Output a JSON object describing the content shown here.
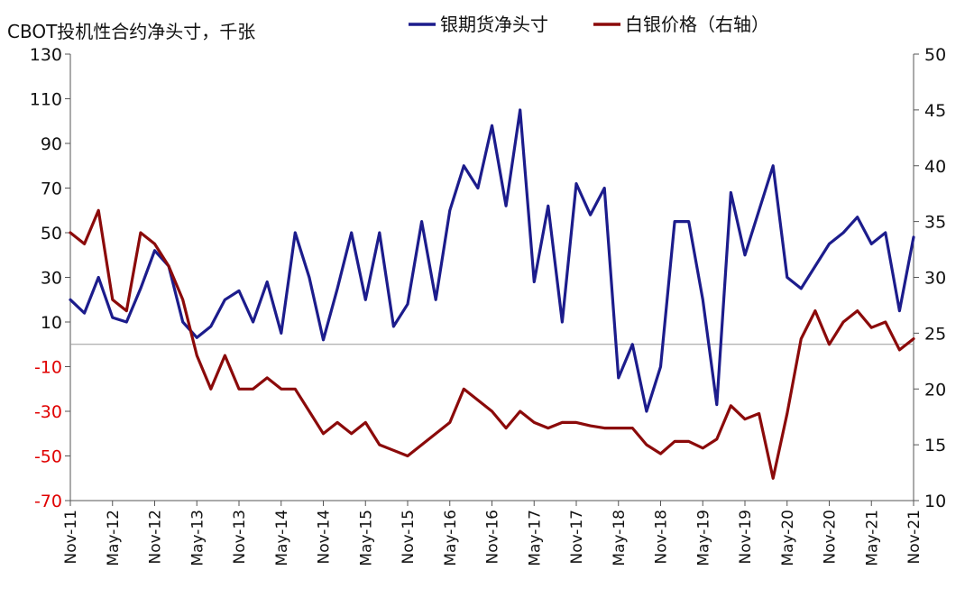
{
  "chart_data": {
    "type": "line",
    "title": "",
    "ylabel_left": "CBOT投机性合约净头寸，千张",
    "ylabel_right": "",
    "legend_position": "top",
    "grid": false,
    "left_axis": {
      "range": [
        -70,
        130
      ],
      "ticks": [
        "130",
        "110",
        "90",
        "70",
        "50",
        "30",
        "10",
        "-10",
        "-30",
        "-50",
        "-70"
      ],
      "negative_color": "#e00000"
    },
    "right_axis": {
      "range": [
        10,
        50
      ],
      "ticks": [
        "50",
        "45",
        "40",
        "35",
        "30",
        "25",
        "20",
        "15",
        "10"
      ]
    },
    "x_ticks": [
      "Nov-11",
      "May-12",
      "Nov-12",
      "May-13",
      "Nov-13",
      "May-14",
      "Nov-14",
      "May-15",
      "Nov-15",
      "May-16",
      "Nov-16",
      "May-17",
      "Nov-17",
      "May-18",
      "Nov-18",
      "May-19",
      "Nov-19",
      "May-20",
      "Nov-20",
      "May-21",
      "Nov-21"
    ],
    "series": [
      {
        "name": "银期货净头寸",
        "axis": "left",
        "color": "#1c1c8c",
        "x": [
          "Nov-11",
          "Jan-12",
          "Mar-12",
          "May-12",
          "Jul-12",
          "Sep-12",
          "Nov-12",
          "Jan-13",
          "Mar-13",
          "May-13",
          "Jul-13",
          "Sep-13",
          "Nov-13",
          "Jan-14",
          "Mar-14",
          "May-14",
          "Jul-14",
          "Sep-14",
          "Nov-14",
          "Jan-15",
          "Mar-15",
          "May-15",
          "Jul-15",
          "Sep-15",
          "Nov-15",
          "Jan-16",
          "Mar-16",
          "May-16",
          "Jul-16",
          "Sep-16",
          "Nov-16",
          "Jan-17",
          "Mar-17",
          "May-17",
          "Jul-17",
          "Sep-17",
          "Nov-17",
          "Jan-18",
          "Mar-18",
          "May-18",
          "Jul-18",
          "Sep-18",
          "Nov-18",
          "Jan-19",
          "Mar-19",
          "May-19",
          "Jul-19",
          "Sep-19",
          "Nov-19",
          "Jan-20",
          "Mar-20",
          "May-20",
          "Jul-20",
          "Sep-20",
          "Nov-20",
          "Jan-21",
          "Mar-21",
          "May-21",
          "Jul-21",
          "Sep-21",
          "Nov-21"
        ],
        "values": [
          20,
          14,
          30,
          12,
          10,
          25,
          42,
          35,
          10,
          3,
          8,
          20,
          24,
          10,
          28,
          5,
          50,
          30,
          2,
          25,
          50,
          20,
          50,
          8,
          18,
          55,
          20,
          60,
          80,
          70,
          98,
          62,
          105,
          28,
          62,
          10,
          72,
          58,
          70,
          -15,
          0,
          -30,
          -10,
          55,
          55,
          20,
          -27,
          68,
          40,
          60,
          80,
          30,
          25,
          35,
          45,
          50,
          57,
          45,
          50,
          15,
          48
        ]
      },
      {
        "name": "白银价格（右轴）",
        "axis": "right",
        "color": "#8b0a0a",
        "x": [
          "Nov-11",
          "Jan-12",
          "Mar-12",
          "May-12",
          "Jul-12",
          "Sep-12",
          "Nov-12",
          "Jan-13",
          "Mar-13",
          "May-13",
          "Jul-13",
          "Sep-13",
          "Nov-13",
          "Jan-14",
          "Mar-14",
          "May-14",
          "Jul-14",
          "Sep-14",
          "Nov-14",
          "Jan-15",
          "Mar-15",
          "May-15",
          "Jul-15",
          "Sep-15",
          "Nov-15",
          "Jan-16",
          "Mar-16",
          "May-16",
          "Jul-16",
          "Sep-16",
          "Nov-16",
          "Jan-17",
          "Mar-17",
          "May-17",
          "Jul-17",
          "Sep-17",
          "Nov-17",
          "Jan-18",
          "Mar-18",
          "May-18",
          "Jul-18",
          "Sep-18",
          "Nov-18",
          "Jan-19",
          "Mar-19",
          "May-19",
          "Jul-19",
          "Sep-19",
          "Nov-19",
          "Jan-20",
          "Mar-20",
          "May-20",
          "Jul-20",
          "Sep-20",
          "Nov-20",
          "Jan-21",
          "Mar-21",
          "May-21",
          "Jul-21",
          "Sep-21",
          "Nov-21"
        ],
        "values": [
          34,
          33,
          36,
          28,
          27,
          34,
          33,
          31,
          28,
          23,
          20,
          23,
          20,
          20,
          21,
          20,
          20,
          18,
          16,
          17,
          16,
          17,
          15,
          14.5,
          14,
          15,
          16,
          17,
          20,
          19,
          18,
          16.5,
          18,
          17,
          16.5,
          17,
          17,
          16.7,
          16.5,
          16.5,
          16.5,
          15,
          14.2,
          15.3,
          15.3,
          14.7,
          15.5,
          18.5,
          17.3,
          17.8,
          12,
          17.8,
          24.5,
          27,
          24,
          26,
          27,
          25.5,
          26,
          23.5,
          24.5
        ]
      }
    ]
  }
}
